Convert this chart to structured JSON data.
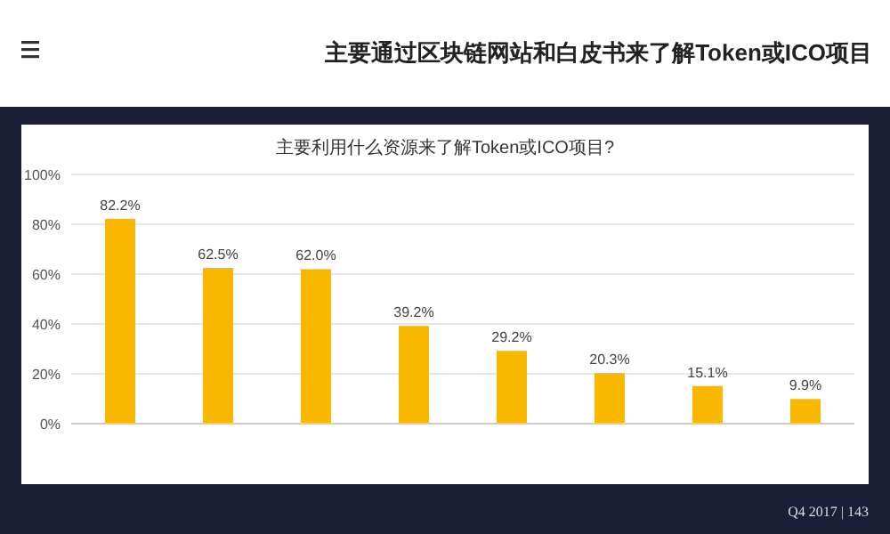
{
  "chart_data": {
    "type": "bar",
    "title": "主要通过区块链网站和白皮书来了解Token或ICO项目",
    "subtitle": "主要利用什么资源来了解Token或ICO项目?",
    "categories": [
      null,
      null,
      null,
      null,
      null,
      null,
      null,
      null
    ],
    "values": [
      82.2,
      62.5,
      62.0,
      39.2,
      29.2,
      20.3,
      15.1,
      9.9
    ],
    "value_labels": [
      "82.2%",
      "62.5%",
      "62.0%",
      "39.2%",
      "29.2%",
      "20.3%",
      "15.1%",
      "9.9%"
    ],
    "color": "#f9b700",
    "ylim": [
      0,
      100
    ],
    "yticks": [
      {
        "value": 0,
        "label": "0%"
      },
      {
        "value": 20,
        "label": "20%"
      },
      {
        "value": 40,
        "label": "40%"
      },
      {
        "value": 60,
        "label": "60%"
      },
      {
        "value": 80,
        "label": "80%"
      },
      {
        "value": 100,
        "label": "100%"
      }
    ],
    "grid": "y",
    "annotations": [
      "Q4 2017  |  143"
    ]
  }
}
